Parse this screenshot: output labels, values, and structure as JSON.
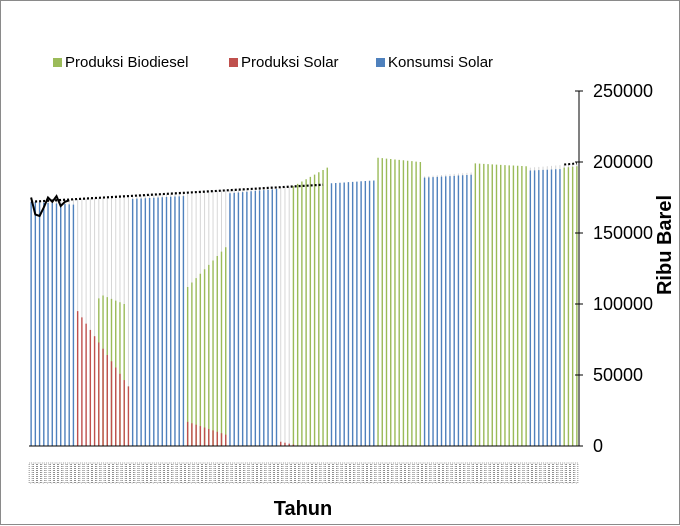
{
  "chart_data": {
    "type": "bar",
    "title": "",
    "xlabel": "Tahun",
    "ylabel": "Ribu Barel",
    "ylim": [
      0,
      250000
    ],
    "yticks": [
      "0",
      "50000",
      "100000",
      "150000",
      "200000",
      "250000"
    ],
    "y_axis_position": "right",
    "legend_position": "top-left",
    "grid": false,
    "num_periods": 130,
    "series": [
      {
        "name": "Produksi Biodiesel",
        "color": "#9bbb59",
        "segments": [
          {
            "start": 16,
            "end": 17,
            "from": 104000,
            "to": 103000
          },
          {
            "start": 17,
            "end": 23,
            "from": 106000,
            "to": 100000
          },
          {
            "start": 37,
            "end": 47,
            "from": 112000,
            "to": 140000
          },
          {
            "start": 62,
            "end": 71,
            "from": 183000,
            "to": 196000
          },
          {
            "start": 82,
            "end": 93,
            "from": 203000,
            "to": 200000
          },
          {
            "start": 105,
            "end": 118,
            "from": 199000,
            "to": 197000
          },
          {
            "start": 126,
            "end": 130,
            "from": 196000,
            "to": 197000
          }
        ]
      },
      {
        "name": "Produksi Solar",
        "color": "#c0504d",
        "segments": [
          {
            "start": 11,
            "end": 24,
            "from": 95000,
            "to": 42000
          },
          {
            "start": 37,
            "end": 47,
            "from": 17000,
            "to": 8000
          },
          {
            "start": 59,
            "end": 63,
            "from": 3000,
            "to": 1000
          }
        ]
      },
      {
        "name": "Konsumsi Solar",
        "color": "#4f81bd",
        "segments": [
          {
            "start": 0,
            "end": 11,
            "from": 172000,
            "to": 170000
          },
          {
            "start": 24,
            "end": 37,
            "from": 174000,
            "to": 176000
          },
          {
            "start": 47,
            "end": 59,
            "from": 178000,
            "to": 181000
          },
          {
            "start": 71,
            "end": 82,
            "from": 185000,
            "to": 187000
          },
          {
            "start": 93,
            "end": 105,
            "from": 189000,
            "to": 191000
          },
          {
            "start": 118,
            "end": 126,
            "from": 194000,
            "to": 195000
          }
        ]
      }
    ],
    "dotted_trend": {
      "color": "#000000",
      "start": 0,
      "end": 69,
      "from": 172000,
      "to": 184000,
      "continues_to": {
        "end": 130,
        "value": 199000
      }
    },
    "solid_line": {
      "color": "#000000",
      "values": [
        {
          "i": 0,
          "v": 175000
        },
        {
          "i": 1,
          "v": 163000
        },
        {
          "i": 2,
          "v": 162000
        },
        {
          "i": 3,
          "v": 168000
        },
        {
          "i": 4,
          "v": 175000
        },
        {
          "i": 5,
          "v": 172000
        },
        {
          "i": 6,
          "v": 176000
        },
        {
          "i": 7,
          "v": 169000
        },
        {
          "i": 8,
          "v": 172000
        },
        {
          "i": 9,
          "v": 173000
        }
      ]
    },
    "background_fill": {
      "color": "#d6d6d6",
      "top_values": "follow_dotted_trend"
    }
  }
}
